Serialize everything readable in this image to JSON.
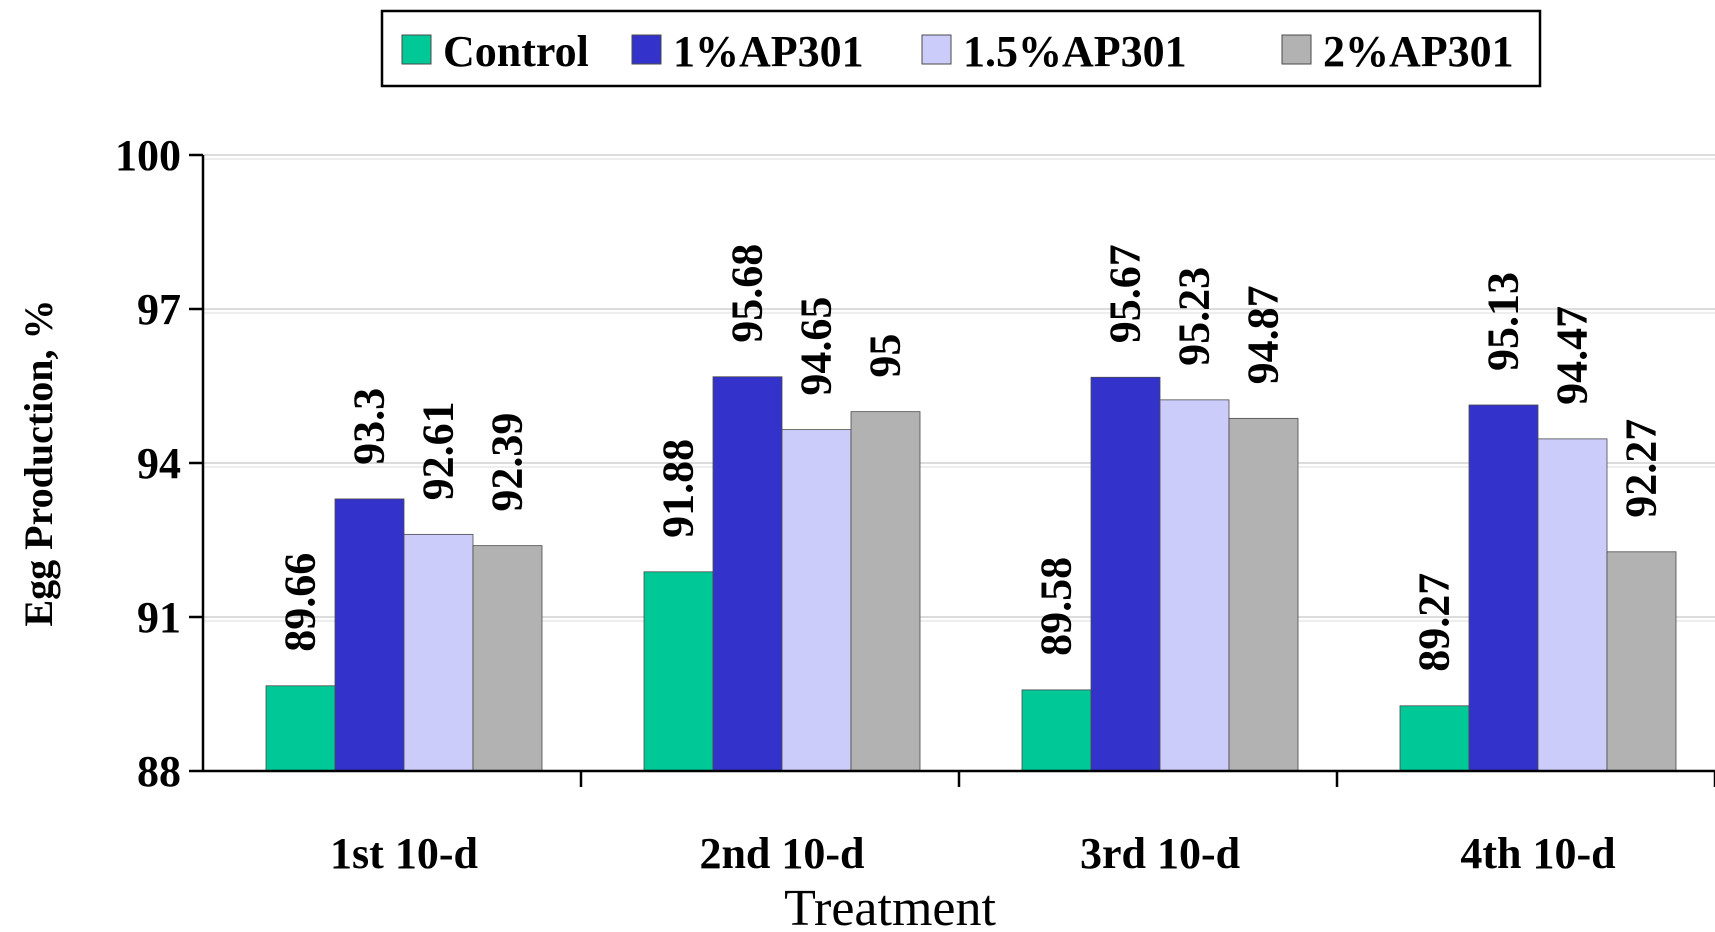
{
  "chart_data": {
    "type": "bar",
    "categories": [
      "1st 10-d",
      "2nd 10-d",
      "3rd 10-d",
      "4th 10-d"
    ],
    "series": [
      {
        "name": "Control",
        "values": [
          89.66,
          91.88,
          89.58,
          89.27
        ],
        "labels": [
          "89.66",
          "91.88",
          "89.58",
          "89.27"
        ],
        "color": "#00C896"
      },
      {
        "name": "1%AP301",
        "values": [
          93.3,
          95.68,
          95.67,
          95.13
        ],
        "labels": [
          "93.3",
          "95.68",
          "95.67",
          "95.13"
        ],
        "color": "#3333CC"
      },
      {
        "name": "1.5%AP301",
        "values": [
          92.61,
          94.65,
          95.23,
          94.47
        ],
        "labels": [
          "92.61",
          "94.65",
          "95.23",
          "94.47"
        ],
        "color": "#CCCCFA"
      },
      {
        "name": "2%AP301",
        "values": [
          92.39,
          95,
          94.87,
          92.27
        ],
        "labels": [
          "92.39",
          "95",
          "94.87",
          "92.27"
        ],
        "color": "#B2B2B2"
      }
    ],
    "xlabel": "Treatment",
    "ylabel": "Egg Production, %",
    "ylim": [
      88,
      100
    ],
    "yticks": [
      "88",
      "91",
      "94",
      "97",
      "100"
    ],
    "grid": true,
    "legend_position": "top-center"
  }
}
